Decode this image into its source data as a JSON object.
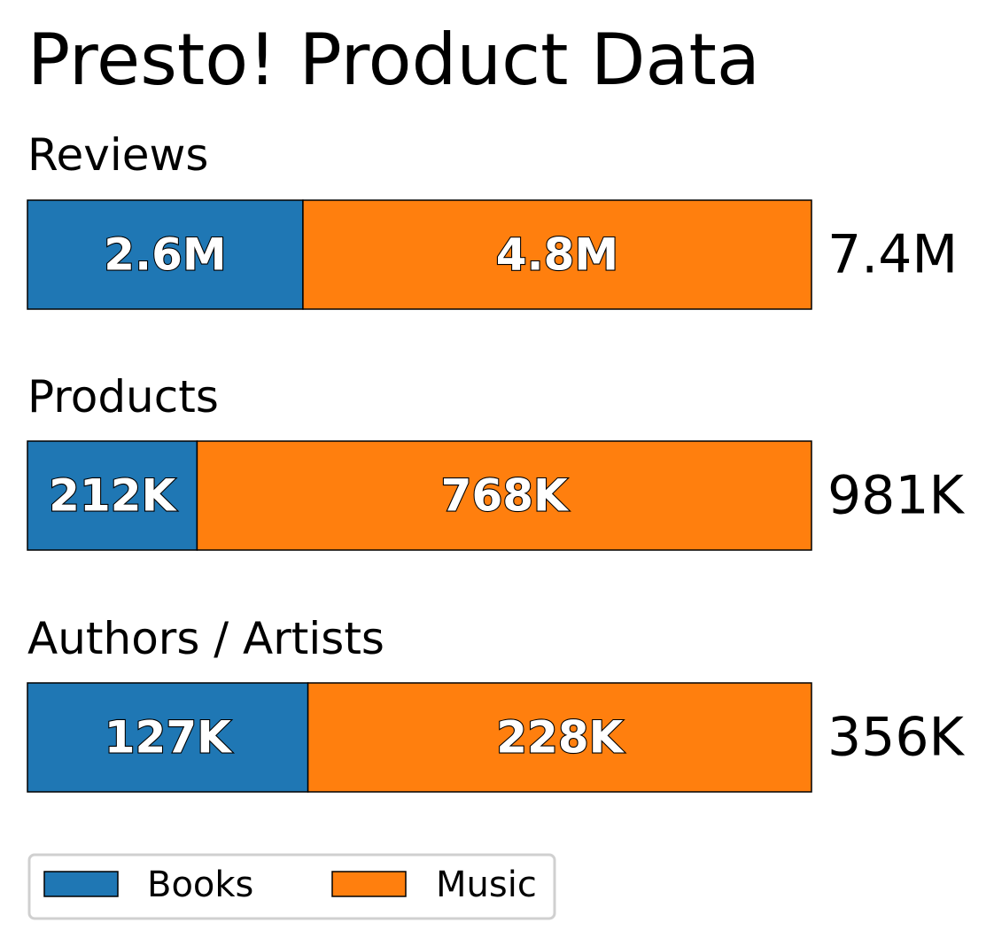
{
  "chart_data": {
    "type": "bar",
    "orientation": "horizontal-stacked",
    "title": "Presto! Product Data",
    "colors": {
      "Books": "#1f77b4",
      "Music": "#ff7f0e"
    },
    "legend": {
      "position": "bottom-left",
      "entries": [
        "Books",
        "Music"
      ]
    },
    "groups": [
      {
        "name": "Reviews",
        "total_label": "7.4M",
        "segments": [
          {
            "series": "Books",
            "value": 2.6,
            "label": "2.6M"
          },
          {
            "series": "Music",
            "value": 4.8,
            "label": "4.8M"
          }
        ]
      },
      {
        "name": "Products",
        "total_label": "981K",
        "segments": [
          {
            "series": "Books",
            "value": 212,
            "label": "212K"
          },
          {
            "series": "Music",
            "value": 768,
            "label": "768K"
          }
        ]
      },
      {
        "name": "Authors / Artists",
        "total_label": "356K",
        "segments": [
          {
            "series": "Books",
            "value": 127,
            "label": "127K"
          },
          {
            "series": "Music",
            "value": 228,
            "label": "228K"
          }
        ]
      }
    ]
  }
}
